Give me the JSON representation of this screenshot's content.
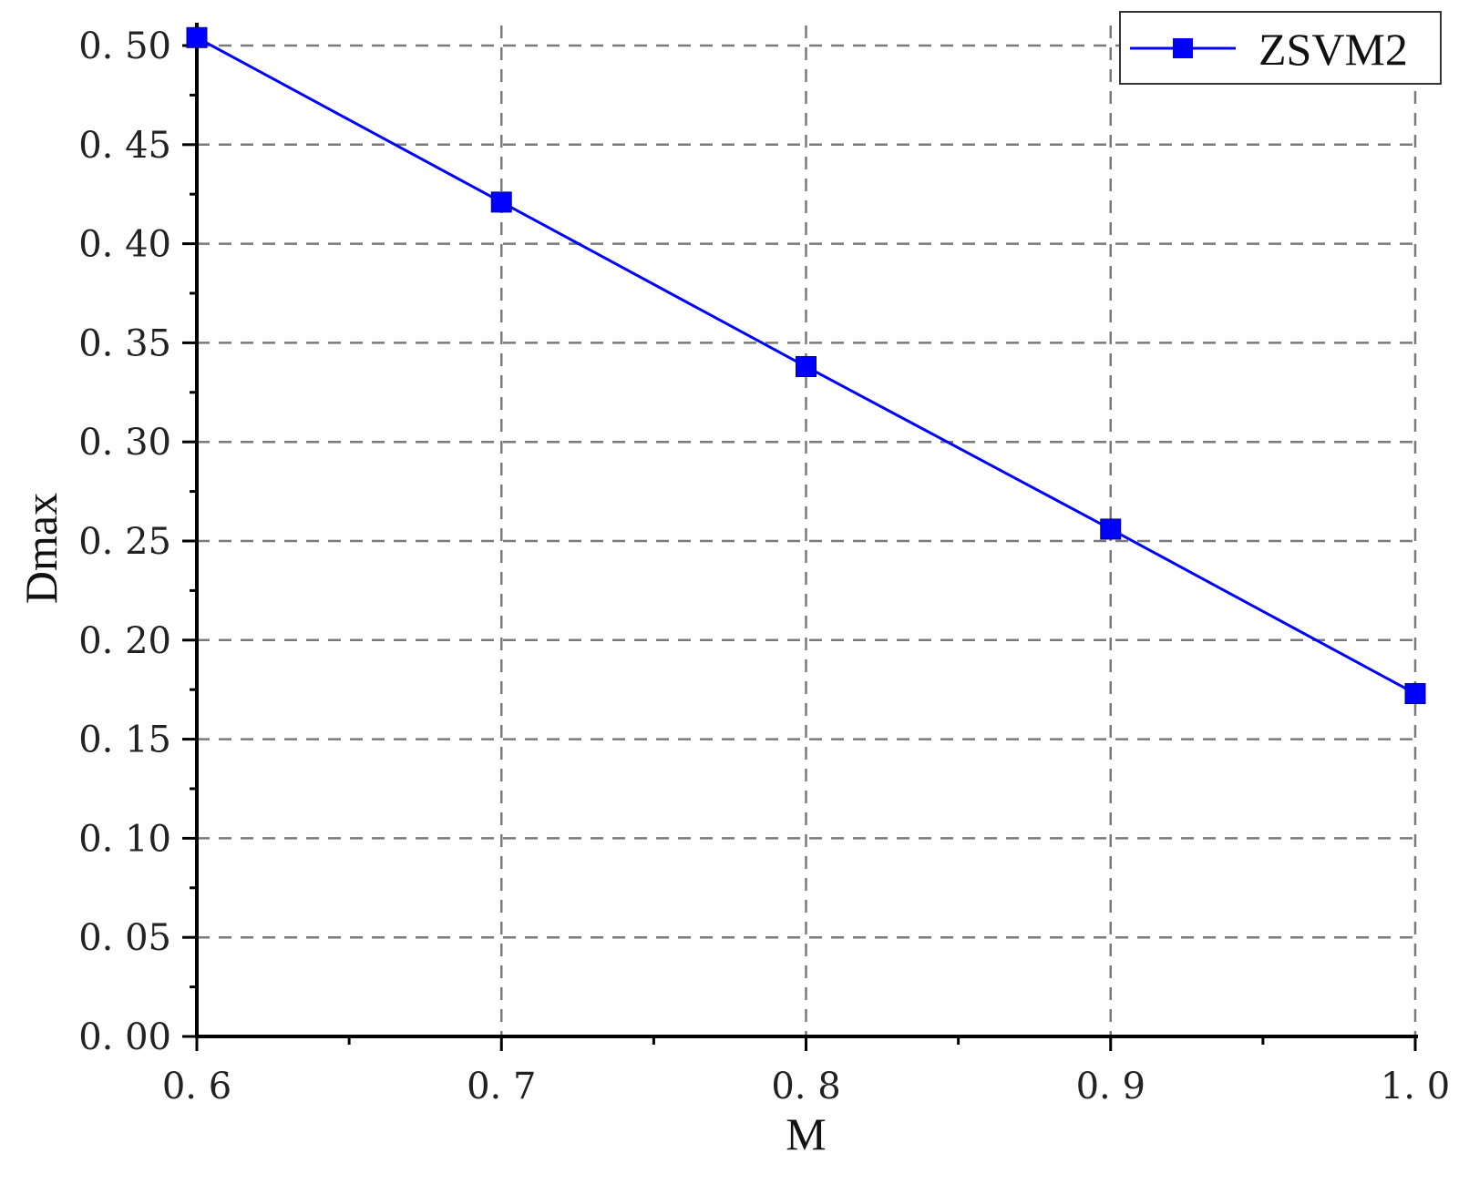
{
  "chart_data": {
    "type": "line",
    "title": "",
    "xlabel": "M",
    "ylabel": "Dmax",
    "x": [
      0.6,
      0.7,
      0.8,
      0.9,
      1.0
    ],
    "series": [
      {
        "name": "ZSVM2",
        "values": [
          0.504,
          0.421,
          0.338,
          0.256,
          0.173
        ],
        "color": "#0000ff",
        "marker": "square"
      }
    ],
    "xlim": [
      0.6,
      1.0
    ],
    "ylim": [
      0.0,
      0.5
    ],
    "x_ticks": [
      "0. 6",
      "0. 7",
      "0. 8",
      "0. 9",
      "1. 0"
    ],
    "x_tick_values": [
      0.6,
      0.7,
      0.8,
      0.9,
      1.0
    ],
    "y_ticks": [
      "0. 00",
      "0. 05",
      "0. 10",
      "0. 15",
      "0. 20",
      "0. 25",
      "0. 30",
      "0. 35",
      "0. 40",
      "0. 45",
      "0. 50"
    ],
    "y_tick_values": [
      0.0,
      0.05,
      0.1,
      0.15,
      0.2,
      0.25,
      0.3,
      0.35,
      0.4,
      0.45,
      0.5
    ],
    "grid": true,
    "grid_style": "dashed",
    "legend_position": "top-right"
  }
}
